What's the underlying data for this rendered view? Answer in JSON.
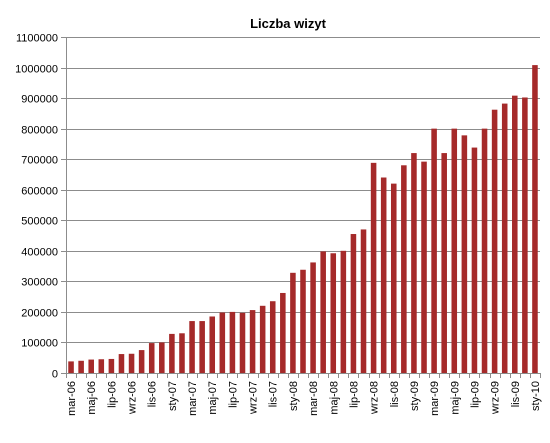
{
  "chart_data": {
    "type": "bar",
    "title": "Liczba wizyt",
    "xlabel": "",
    "ylabel": "",
    "ylim": [
      0,
      1100000
    ],
    "ytick_step": 100000,
    "grid": true,
    "legend": "none",
    "bar_color": "#A52A2A",
    "categories": [
      "mar-06",
      "kwi-06",
      "maj-06",
      "cze-06",
      "lip-06",
      "sie-06",
      "wrz-06",
      "paź-06",
      "lis-06",
      "gru-06",
      "sty-07",
      "lut-07",
      "mar-07",
      "kwi-07",
      "maj-07",
      "cze-07",
      "lip-07",
      "sie-07",
      "wrz-07",
      "paź-07",
      "lis-07",
      "gru-07",
      "sty-08",
      "lut-08",
      "mar-08",
      "kwi-08",
      "maj-08",
      "cze-08",
      "lip-08",
      "sie-08",
      "wrz-08",
      "paź-08",
      "lis-08",
      "gru-08",
      "sty-09",
      "lut-09",
      "mar-09",
      "kwi-09",
      "maj-09",
      "cze-09",
      "lip-09",
      "sie-09",
      "wrz-09",
      "paź-09",
      "lis-09",
      "gru-09",
      "sty-10"
    ],
    "tick_labels": [
      "mar-06",
      "maj-06",
      "lip-06",
      "wrz-06",
      "lis-06",
      "sty-07",
      "mar-07",
      "maj-07",
      "lip-07",
      "wrz-07",
      "lis-07",
      "sty-08",
      "mar-08",
      "maj-08",
      "lip-08",
      "wrz-08",
      "lis-08",
      "sty-09",
      "mar-09",
      "maj-09",
      "lip-09",
      "wrz-09",
      "lis-09",
      "sty-10"
    ],
    "values": [
      38000,
      40000,
      44000,
      45000,
      46000,
      62000,
      63000,
      75000,
      98000,
      100000,
      128000,
      130000,
      170000,
      170000,
      185000,
      198000,
      200000,
      197000,
      206000,
      220000,
      235000,
      262000,
      328000,
      338000,
      362000,
      398000,
      392000,
      400000,
      455000,
      470000,
      688000,
      640000,
      620000,
      680000,
      720000,
      692000,
      800000,
      720000,
      800000,
      778000,
      738000,
      800000,
      862000,
      882000,
      908000,
      902000,
      1008000
    ]
  }
}
